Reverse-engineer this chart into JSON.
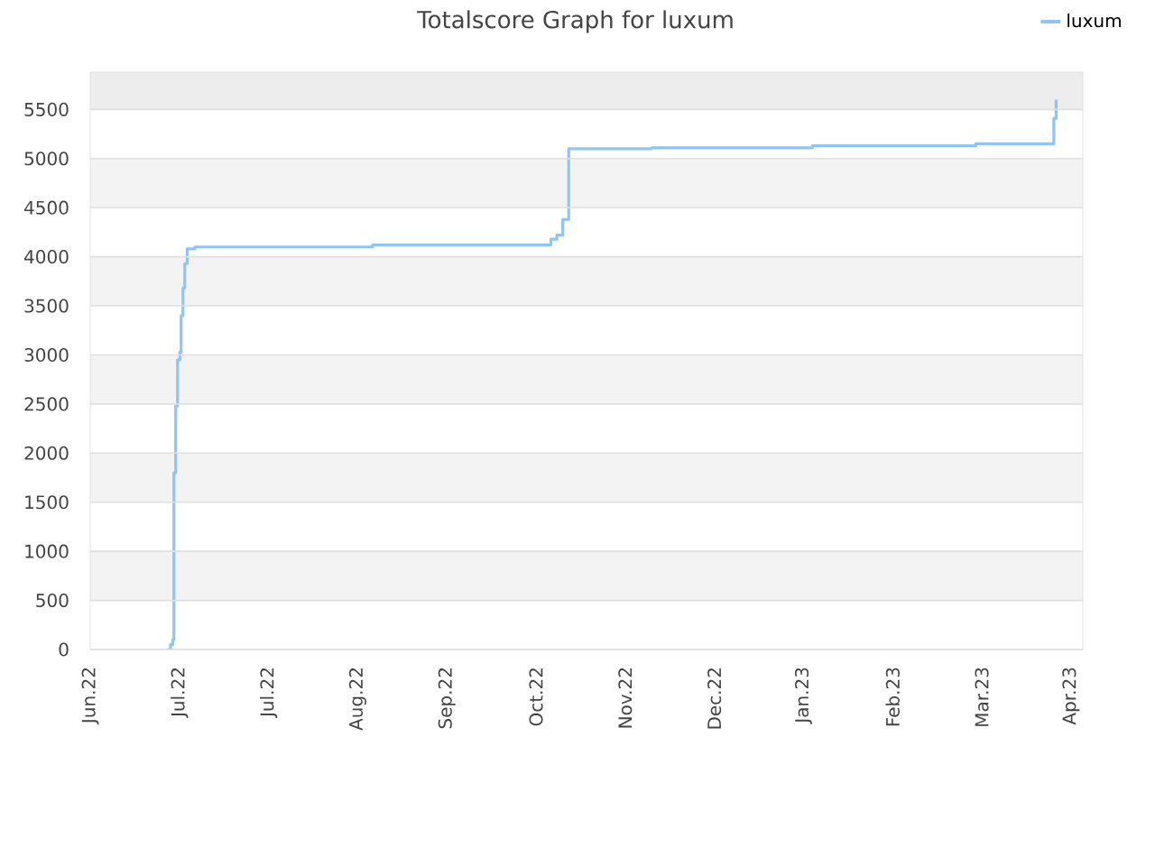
{
  "chart_data": {
    "type": "step",
    "title": "Totalscore Graph for luxum",
    "x": [
      "2022-06-27T00:00",
      "2022-06-28T00:00",
      "2022-06-28T18:00",
      "2022-06-29T04:00",
      "2022-06-29T18:00",
      "2022-06-30T09:00",
      "2022-07-01T04:00",
      "2022-07-01T14:00",
      "2022-07-02T05:00",
      "2022-07-02T19:00",
      "2022-07-03T15:00",
      "2022-07-06T05:00",
      "2022-09-04",
      "2022-11-03",
      "2022-11-05",
      "2022-11-07",
      "2022-11-09",
      "2022-12-07",
      "2023-01-30",
      "2023-03-26",
      "2023-04-21T06:00",
      "2023-04-22"
    ],
    "series": [
      {
        "name": "luxum",
        "color": "#90c4f5",
        "values": [
          0,
          50,
          100,
          1800,
          2480,
          2950,
          3030,
          3400,
          3680,
          3930,
          4080,
          4100,
          4120,
          4180,
          4220,
          4380,
          5100,
          5110,
          5130,
          5150,
          5410,
          5600
        ]
      }
    ],
    "xlim": [
      "2022-06-01",
      "2023-05-01"
    ],
    "xticks": [
      {
        "value": "2022-06-01",
        "label": "Jun.22"
      },
      {
        "value": "2022-07-01",
        "label": "Jul.22"
      },
      {
        "value": "2022-07-31",
        "label": "Jul.22"
      },
      {
        "value": "2022-08-30",
        "label": "Aug.22"
      },
      {
        "value": "2022-09-29",
        "label": "Sep.22"
      },
      {
        "value": "2022-10-29",
        "label": "Oct.22"
      },
      {
        "value": "2022-11-28",
        "label": "Nov.22"
      },
      {
        "value": "2022-12-28",
        "label": "Dec.22"
      },
      {
        "value": "2023-01-27",
        "label": "Jan.23"
      },
      {
        "value": "2023-02-26",
        "label": "Feb.23"
      },
      {
        "value": "2023-03-28",
        "label": "Mar.23"
      },
      {
        "value": "2023-04-27",
        "label": "Apr.23"
      }
    ],
    "ylim": [
      0,
      5880
    ],
    "yticks": [
      0,
      500,
      1000,
      1500,
      2000,
      2500,
      3000,
      3500,
      4000,
      4500,
      5000,
      5500
    ],
    "grid": "y",
    "legend": "top right",
    "bands": [
      {
        "axis": "y",
        "from": 500,
        "to": 1000,
        "color": "#f3f3f3"
      },
      {
        "axis": "y",
        "from": 1500,
        "to": 2000,
        "color": "#f3f3f3"
      },
      {
        "axis": "y",
        "from": 2500,
        "to": 3000,
        "color": "#f3f3f3"
      },
      {
        "axis": "y",
        "from": 3500,
        "to": 4000,
        "color": "#f3f3f3"
      },
      {
        "axis": "y",
        "from": 4500,
        "to": 5000,
        "color": "#f3f3f3"
      },
      {
        "axis": "y",
        "from": 5500,
        "to": 5880,
        "color": "#ededed"
      }
    ]
  }
}
